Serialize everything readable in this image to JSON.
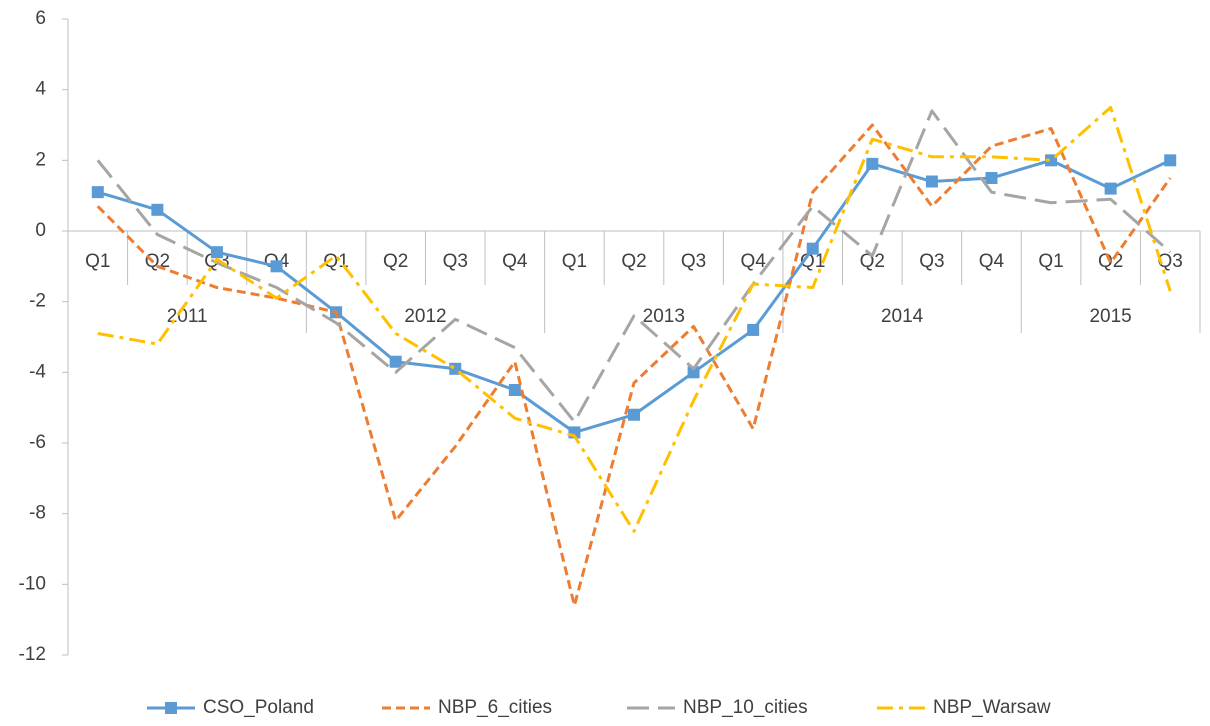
{
  "chart_data": {
    "type": "line",
    "category_groups": [
      {
        "name": "2011",
        "categories": [
          "Q1",
          "Q2",
          "Q3",
          "Q4"
        ]
      },
      {
        "name": "2012",
        "categories": [
          "Q1",
          "Q2",
          "Q3",
          "Q4"
        ]
      },
      {
        "name": "2013",
        "categories": [
          "Q1",
          "Q2",
          "Q3",
          "Q4"
        ]
      },
      {
        "name": "2014",
        "categories": [
          "Q1",
          "Q2",
          "Q3",
          "Q4"
        ]
      },
      {
        "name": "2015",
        "categories": [
          "Q1",
          "Q2",
          "Q3"
        ]
      }
    ],
    "series": [
      {
        "name": "CSO_Poland",
        "color": "#5b9bd5",
        "dash": "solid",
        "marker": "square",
        "values": [
          1.1,
          0.6,
          -0.6,
          -1.0,
          -2.3,
          -3.7,
          -3.9,
          -4.5,
          -5.7,
          -5.2,
          -4.0,
          -2.8,
          -0.5,
          1.9,
          1.4,
          1.5,
          2.0,
          1.2,
          2.0
        ]
      },
      {
        "name": "NBP_6_cities",
        "color": "#ed7d31",
        "dash": "short-dash",
        "values": [
          0.7,
          -1.0,
          -1.6,
          -1.9,
          -2.3,
          -8.2,
          -6.1,
          -3.7,
          -10.6,
          -4.3,
          -2.7,
          -5.6,
          1.1,
          3.0,
          0.7,
          2.4,
          2.9,
          -0.9,
          1.5
        ]
      },
      {
        "name": "NBP_10_cities",
        "color": "#a5a5a5",
        "dash": "long-dash",
        "values": [
          2.0,
          -0.1,
          -0.9,
          -1.6,
          -2.6,
          -4.0,
          -2.5,
          -3.3,
          -5.4,
          -2.4,
          -3.9,
          -1.5,
          0.7,
          -0.7,
          3.4,
          1.1,
          0.8,
          0.9,
          -0.6
        ]
      },
      {
        "name": "NBP_Warsaw",
        "color": "#ffc000",
        "dash": "dash-dot",
        "values": [
          -2.9,
          -3.2,
          -0.8,
          -1.9,
          -0.7,
          -2.9,
          -3.9,
          -5.3,
          -5.8,
          -8.5,
          -4.8,
          -1.5,
          -1.6,
          2.6,
          2.1,
          2.1,
          2.0,
          3.5,
          -1.7
        ]
      }
    ],
    "ylim": [
      -12,
      6
    ],
    "yticks": [
      -12,
      -10,
      -8,
      -6,
      -4,
      -2,
      0,
      2,
      4,
      6
    ],
    "grid": false,
    "legend": "bottom"
  }
}
